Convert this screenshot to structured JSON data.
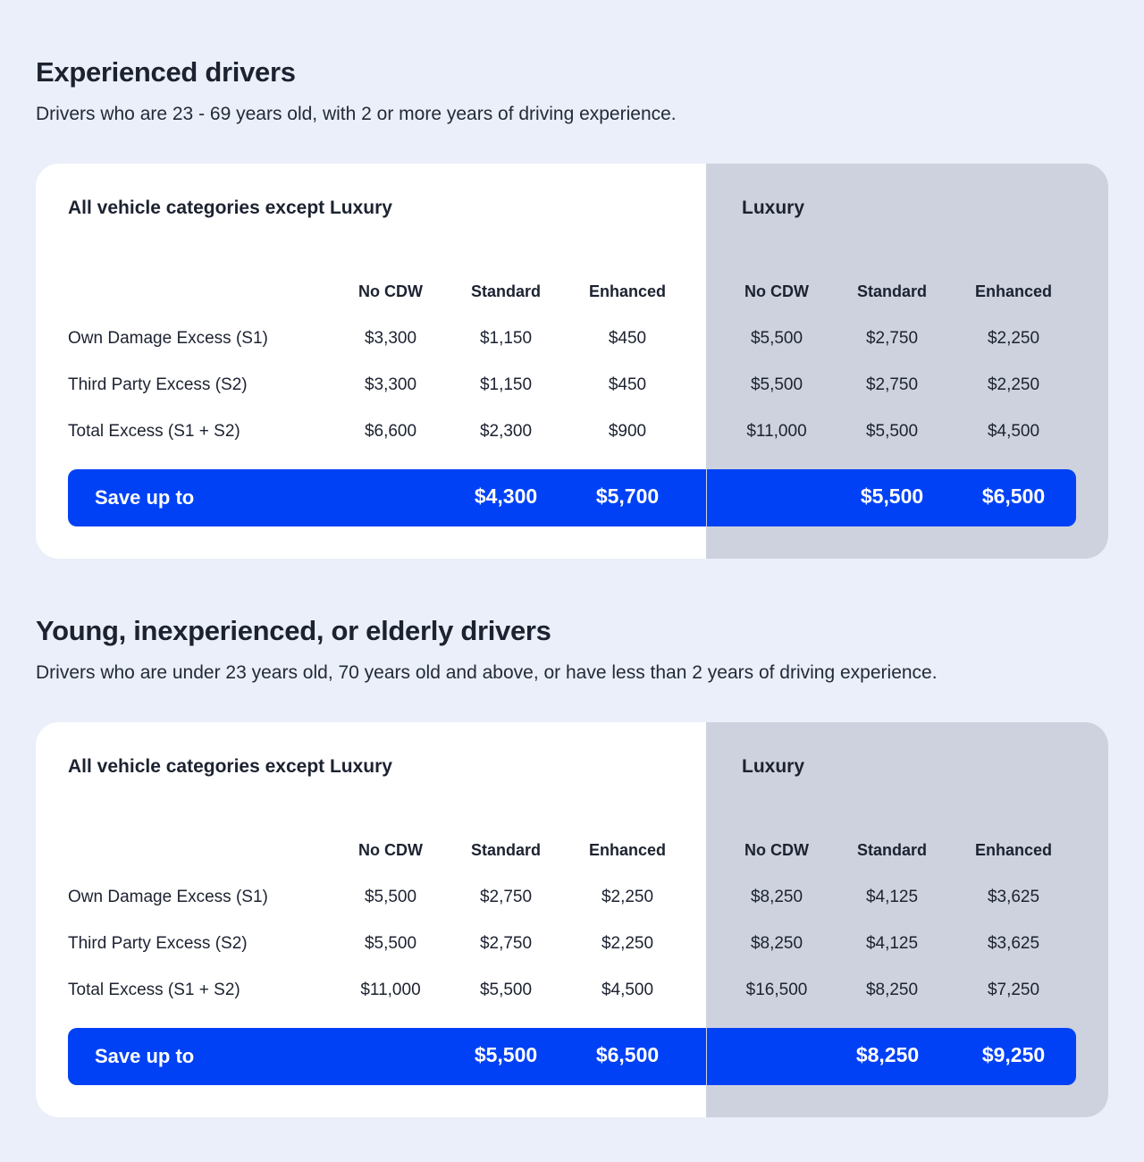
{
  "sections": [
    {
      "title": "Experienced drivers",
      "description": "Drivers who are 23 - 69 years old, with 2 or more years of driving experience.",
      "left_header": "All vehicle categories except Luxury",
      "right_header": "Luxury",
      "columns": [
        "No CDW",
        "Standard",
        "Enhanced",
        "No CDW",
        "Standard",
        "Enhanced"
      ],
      "rows": [
        {
          "label": "Own Damage Excess (S1)",
          "values": [
            "$3,300",
            "$1,150",
            "$450",
            "$5,500",
            "$2,750",
            "$2,250"
          ]
        },
        {
          "label": "Third Party Excess (S2)",
          "values": [
            "$3,300",
            "$1,150",
            "$450",
            "$5,500",
            "$2,750",
            "$2,250"
          ]
        },
        {
          "label": "Total Excess (S1 + S2)",
          "values": [
            "$6,600",
            "$2,300",
            "$900",
            "$11,000",
            "$5,500",
            "$4,500"
          ]
        }
      ],
      "save_label": "Save up to",
      "save_values": [
        "$4,300",
        "$5,700",
        "$5,500",
        "$6,500"
      ]
    },
    {
      "title": "Young, inexperienced, or elderly drivers",
      "description": "Drivers who are under 23 years old, 70 years old and above, or have less than 2 years of driving experience.",
      "left_header": "All vehicle categories except Luxury",
      "right_header": "Luxury",
      "columns": [
        "No CDW",
        "Standard",
        "Enhanced",
        "No CDW",
        "Standard",
        "Enhanced"
      ],
      "rows": [
        {
          "label": "Own Damage Excess (S1)",
          "values": [
            "$5,500",
            "$2,750",
            "$2,250",
            "$8,250",
            "$4,125",
            "$3,625"
          ]
        },
        {
          "label": "Third Party Excess (S2)",
          "values": [
            "$5,500",
            "$2,750",
            "$2,250",
            "$8,250",
            "$4,125",
            "$3,625"
          ]
        },
        {
          "label": "Total Excess (S1 + S2)",
          "values": [
            "$11,000",
            "$5,500",
            "$4,500",
            "$16,500",
            "$8,250",
            "$7,250"
          ]
        }
      ],
      "save_label": "Save up to",
      "save_values": [
        "$5,500",
        "$6,500",
        "$8,250",
        "$9,250"
      ]
    }
  ],
  "colors": {
    "page_bg": "#eaeff9",
    "card_bg": "#ffffff",
    "luxury_bg": "#cdd2de",
    "accent": "#0041f6",
    "text": "#1c2230"
  }
}
